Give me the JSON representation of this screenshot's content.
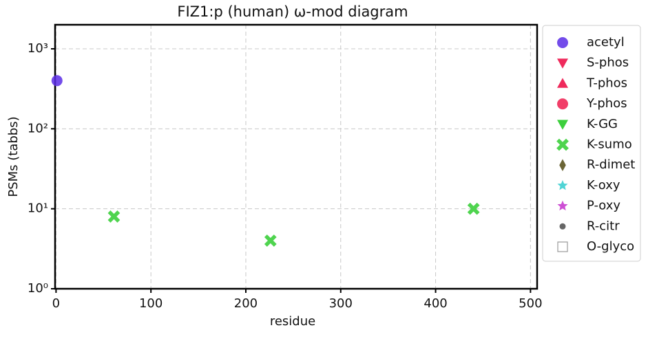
{
  "chart_data": {
    "type": "scatter",
    "title": "FIZ1:p (human) ω-mod diagram",
    "x_label": "residue",
    "y_label": "PSMs (tabbs)",
    "xlim": [
      -1,
      507
    ],
    "xticks": [
      0,
      100,
      200,
      300,
      400,
      500
    ],
    "ylim": [
      1,
      2000
    ],
    "log_y": true,
    "yticks": [
      {
        "value": 1,
        "label": "10⁰"
      },
      {
        "value": 10,
        "label": "10¹"
      },
      {
        "value": 100,
        "label": "10²"
      },
      {
        "value": 1000,
        "label": "10³"
      }
    ],
    "grid": true,
    "legend": "outside-right",
    "series": [
      {
        "name": "acetyl",
        "color": "#5a2de6",
        "marker": "circle",
        "x": [
          1
        ],
        "values": [
          400
        ]
      },
      {
        "name": "S-phos",
        "color": "#ef2a5c",
        "marker": "tri-down",
        "x": [],
        "values": []
      },
      {
        "name": "T-phos",
        "color": "#ef2a5c",
        "marker": "tri-up",
        "x": [],
        "values": []
      },
      {
        "name": "Y-phos",
        "color": "#ee1c4e",
        "marker": "circle",
        "x": [],
        "values": []
      },
      {
        "name": "K-GG",
        "color": "#3ccf3c",
        "marker": "tri-down",
        "x": [],
        "values": []
      },
      {
        "name": "K-sumo",
        "color": "#3ccf3c",
        "marker": "x",
        "x": [
          61,
          226,
          440
        ],
        "values": [
          8,
          4,
          10
        ]
      },
      {
        "name": "R-dimet",
        "color": "#6b6536",
        "marker": "diamond",
        "x": [],
        "values": []
      },
      {
        "name": "K-oxy",
        "color": "#3ccfd0",
        "marker": "star",
        "x": [],
        "values": []
      },
      {
        "name": "P-oxy",
        "color": "#c83ccf",
        "marker": "star",
        "x": [],
        "values": []
      },
      {
        "name": "R-citr",
        "color": "#666666",
        "marker": "dot",
        "x": [],
        "values": []
      },
      {
        "name": "O-glyco",
        "color": "#999999",
        "marker": "square-open",
        "x": [],
        "values": []
      }
    ]
  }
}
